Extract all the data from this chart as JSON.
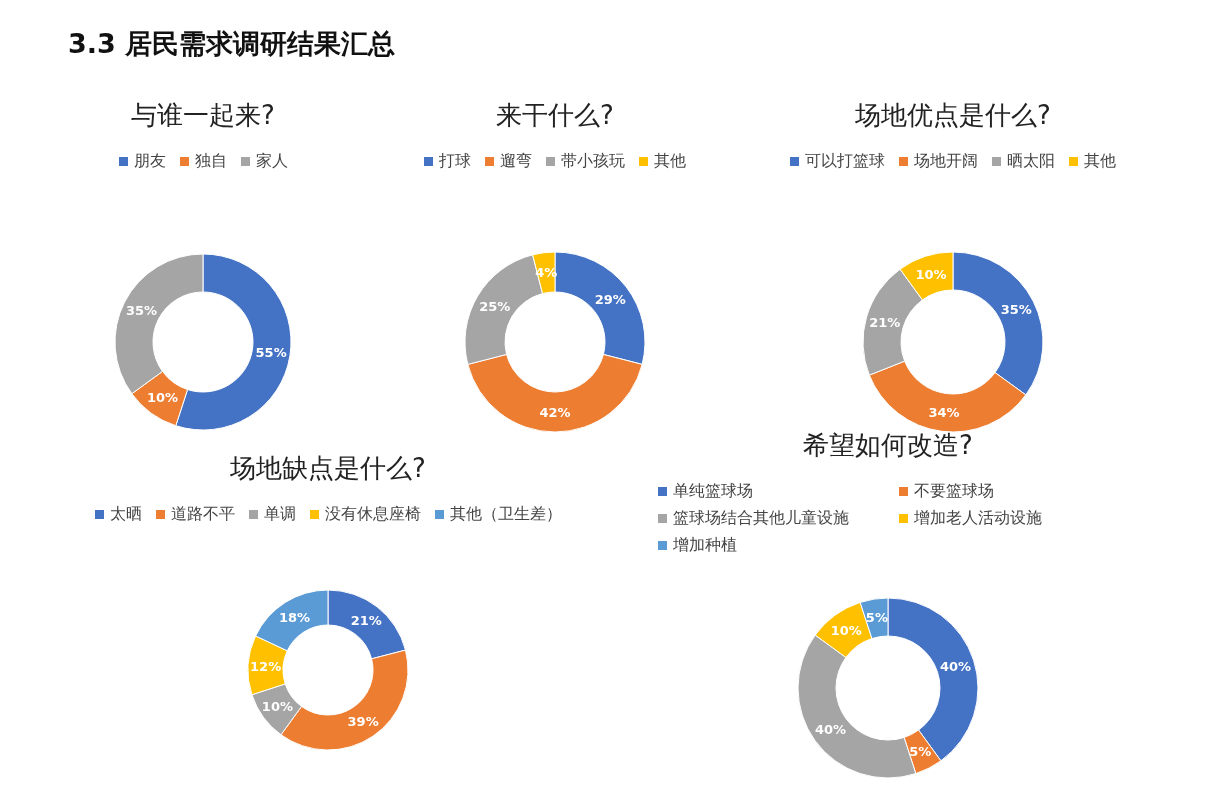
{
  "chart_data": [
    {
      "type": "donut",
      "title": "与谁一起来?",
      "annotations": [
        "3.3 居民需求调研结果汇总"
      ],
      "legend": "top",
      "categories": [
        "朋友",
        "独自",
        "家人"
      ],
      "values": [
        55,
        10,
        35
      ],
      "colors": [
        "#4472c4",
        "#ed7d31",
        "#a5a5a5"
      ],
      "value_labels": [
        "55%",
        "10%",
        "35%"
      ]
    },
    {
      "type": "donut",
      "title": "来干什么?",
      "legend": "top",
      "categories": [
        "打球",
        "遛弯",
        "带小孩玩",
        "其他"
      ],
      "values": [
        29,
        42,
        25,
        4
      ],
      "colors": [
        "#4472c4",
        "#ed7d31",
        "#a5a5a5",
        "#ffc000"
      ],
      "value_labels": [
        "29%",
        "42%",
        "25%",
        "4%"
      ]
    },
    {
      "type": "donut",
      "title": "场地优点是什么?",
      "legend": "top",
      "categories": [
        "可以打篮球",
        "场地开阔",
        "晒太阳",
        "其他"
      ],
      "values": [
        35,
        34,
        21,
        10
      ],
      "colors": [
        "#4472c4",
        "#ed7d31",
        "#a5a5a5",
        "#ffc000"
      ],
      "value_labels": [
        "35%",
        "34%",
        "21%",
        "10%"
      ]
    },
    {
      "type": "donut",
      "title": "场地缺点是什么?",
      "legend": "top",
      "categories": [
        "太晒",
        "道路不平",
        "单调",
        "没有休息座椅",
        "其他（卫生差）"
      ],
      "values": [
        21,
        39,
        10,
        12,
        18
      ],
      "colors": [
        "#4472c4",
        "#ed7d31",
        "#a5a5a5",
        "#ffc000",
        "#5b9bd5"
      ],
      "value_labels": [
        "21%",
        "39%",
        "10%",
        "12%",
        "18%"
      ]
    },
    {
      "type": "donut",
      "title": "希望如何改造?",
      "legend": "top",
      "categories": [
        "单纯篮球场",
        "不要篮球场",
        "篮球场结合其他儿童设施",
        "增加老人活动设施",
        "增加种植"
      ],
      "values": [
        40,
        5,
        40,
        10,
        5
      ],
      "colors": [
        "#4472c4",
        "#ed7d31",
        "#a5a5a5",
        "#ffc000",
        "#5b9bd5"
      ],
      "value_labels": [
        "40%",
        "5%",
        "40%",
        "10%",
        "5%"
      ]
    }
  ]
}
